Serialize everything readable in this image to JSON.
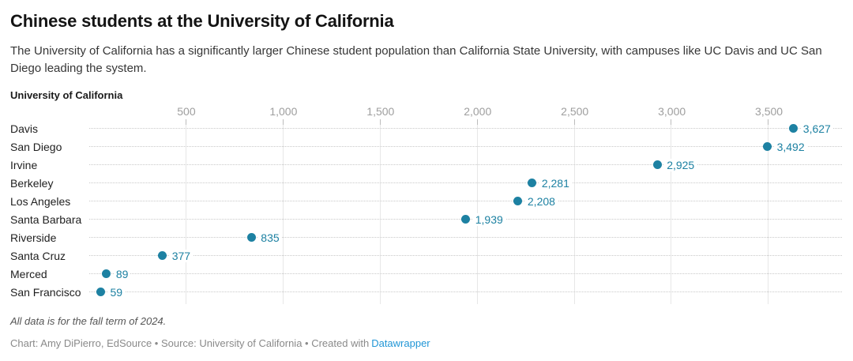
{
  "header": {
    "title": "Chinese students at the University of California",
    "subtitle": "The University of California has a significantly larger Chinese student population than California State University, with campuses like UC Davis and UC San Diego leading the system."
  },
  "chart_data": {
    "type": "scatter",
    "variant": "dot-plot",
    "title": "Chinese students at the University of California",
    "group_label": "University of California",
    "categories": [
      "Davis",
      "San Diego",
      "Irvine",
      "Berkeley",
      "Los Angeles",
      "Santa Barbara",
      "Riverside",
      "Santa Cruz",
      "Merced",
      "San Francisco"
    ],
    "values": [
      3627,
      3492,
      2925,
      2281,
      2208,
      1939,
      835,
      377,
      89,
      59
    ],
    "value_labels": [
      "3,627",
      "3,492",
      "2,925",
      "2,281",
      "2,208",
      "1,939",
      "835",
      "377",
      "89",
      "59"
    ],
    "xlabel": "",
    "ylabel": "",
    "xlim": [
      0,
      3880
    ],
    "ticks": [
      {
        "value": 500,
        "label": "500"
      },
      {
        "value": 1000,
        "label": "1,000"
      },
      {
        "value": 1500,
        "label": "1,500"
      },
      {
        "value": 2000,
        "label": "2,000"
      },
      {
        "value": 2500,
        "label": "2,500"
      },
      {
        "value": 3000,
        "label": "3,000"
      },
      {
        "value": 3500,
        "label": "3,500"
      }
    ],
    "grid": "vertical-on",
    "legend": "none"
  },
  "footer": {
    "footnote": "All data is for the fall term of 2024.",
    "credit": {
      "chart_by": "Chart: Amy DiPierro, EdSource",
      "source": "Source: University of California",
      "created_with": "Created with",
      "link": "Datawrapper",
      "separator": " • "
    }
  },
  "colors": {
    "accent": "#1d81a2",
    "link": "#2196d6",
    "grid": "#e7e7e7",
    "tick_mark": "#bcbcbc",
    "leader": "#c9c9c9"
  }
}
